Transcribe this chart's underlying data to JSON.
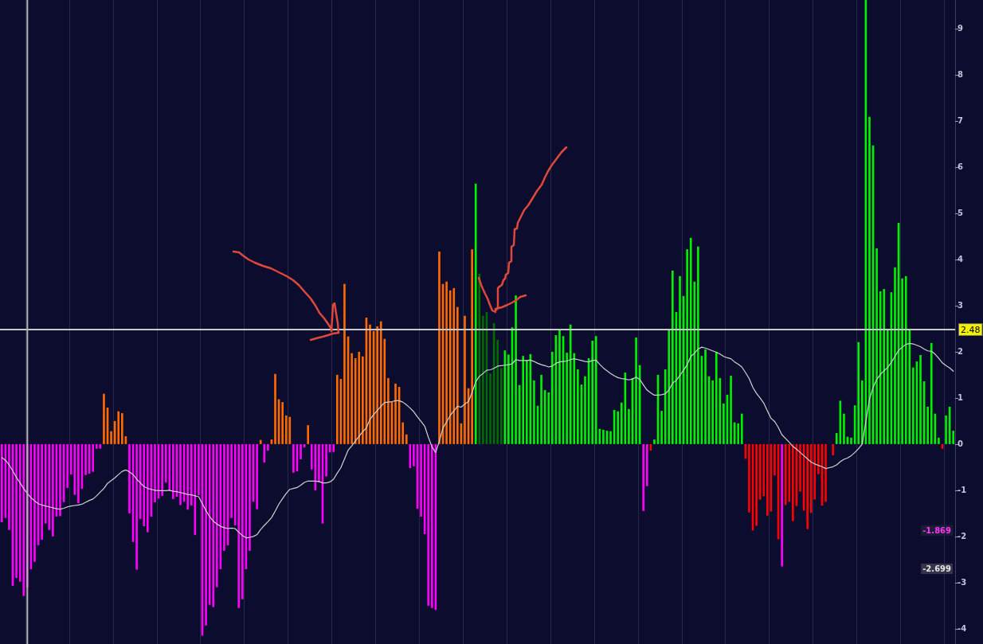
{
  "chart_data": {
    "type": "bar",
    "categories": [
      null,
      null,
      null,
      null,
      null,
      null,
      null,
      null,
      null,
      null,
      null,
      null,
      null,
      null,
      null,
      null,
      null,
      null,
      null,
      null,
      null,
      null,
      null,
      null,
      null,
      null,
      null,
      null,
      null,
      null,
      null,
      null,
      null,
      null,
      null,
      null,
      null,
      null,
      null,
      null,
      null,
      null,
      null,
      null,
      null,
      null,
      null,
      null,
      null,
      null,
      null,
      null,
      null,
      null,
      null,
      null,
      null,
      null,
      null,
      null,
      null,
      null,
      null,
      null,
      null,
      null,
      null,
      null,
      null,
      null,
      null,
      null,
      null,
      null,
      null,
      null,
      null,
      null,
      null,
      null,
      null,
      null,
      null,
      null,
      null,
      null,
      null,
      null,
      null,
      null,
      null,
      null,
      null,
      null,
      null,
      null,
      null,
      null,
      null,
      null,
      null,
      null,
      null,
      null,
      null,
      null,
      null,
      null,
      null,
      null,
      null,
      null,
      null,
      null,
      null,
      null,
      null,
      null,
      null,
      null,
      null,
      null,
      null,
      null,
      null,
      null,
      null,
      null,
      null,
      null,
      null,
      null,
      null,
      null,
      null,
      null,
      null,
      null,
      null,
      null,
      null,
      null,
      null,
      null,
      null,
      null,
      null,
      null,
      null,
      null,
      null,
      null,
      null,
      null,
      null,
      null,
      null,
      null,
      null,
      null,
      null,
      null,
      null,
      null,
      null,
      null,
      null,
      null,
      null,
      null,
      null,
      null,
      null,
      null,
      null,
      null,
      null,
      null,
      null,
      null,
      null,
      null,
      null,
      null,
      null,
      null,
      null,
      null,
      null,
      null,
      null,
      null,
      null,
      null,
      null,
      null,
      null,
      null,
      null,
      null,
      null,
      null,
      null,
      null,
      null,
      null,
      null,
      null,
      null,
      null,
      null,
      null,
      null,
      null,
      null,
      null,
      null,
      null,
      null,
      null,
      null,
      null,
      null,
      null,
      null,
      null,
      null,
      null,
      null,
      null,
      null,
      null,
      null,
      null,
      null,
      null,
      null,
      null,
      null,
      null,
      null,
      null,
      null,
      null,
      null,
      null,
      null,
      null,
      null,
      null,
      null,
      null,
      null,
      null,
      null,
      null,
      null,
      null,
      null,
      null,
      null,
      null
    ],
    "series": [
      {
        "values": [
          -1.69,
          -1.6,
          -1.86,
          -3.07,
          -2.9,
          -2.98,
          -3.29,
          -3.1,
          -2.71,
          -2.55,
          -2.19,
          -2.07,
          -1.72,
          -1.86,
          -2.0,
          -1.57,
          -1.56,
          -1.26,
          -0.95,
          -0.66,
          -1.1,
          -1.28,
          -0.97,
          -0.67,
          -0.64,
          -0.6,
          -0.1,
          -0.1,
          1.09,
          0.79,
          0.28,
          0.5,
          0.71,
          0.67,
          0.17,
          -1.5,
          -2.12,
          -2.72,
          -1.62,
          -1.78,
          -1.91,
          -1.57,
          -1.26,
          -1.18,
          -1.12,
          -0.83,
          -1.0,
          -1.19,
          -1.14,
          -1.32,
          -1.25,
          -1.42,
          -1.33,
          -1.97,
          -1.11,
          -4.15,
          -3.93,
          -3.48,
          -3.53,
          -3.1,
          -2.71,
          -2.31,
          -2.19,
          -1.6,
          -1.76,
          -3.55,
          -3.36,
          -2.71,
          -2.31,
          -1.25,
          -1.41,
          0.09,
          -0.4,
          -0.14,
          0.1,
          1.52,
          0.97,
          0.91,
          0.62,
          0.59,
          -0.62,
          -0.59,
          -0.33,
          -0.07,
          0.41,
          -0.55,
          -1.0,
          -0.83,
          -1.72,
          -0.7,
          -0.18,
          -0.17,
          1.5,
          1.41,
          3.47,
          2.33,
          1.97,
          1.86,
          2.0,
          1.9,
          2.74,
          2.59,
          2.45,
          2.55,
          2.66,
          2.28,
          1.43,
          0.91,
          1.31,
          1.24,
          0.47,
          0.21,
          -0.52,
          -0.48,
          -1.4,
          -1.57,
          -1.95,
          -3.5,
          -3.55,
          -3.59,
          4.17,
          3.47,
          3.52,
          3.33,
          3.38,
          2.97,
          0.45,
          2.78,
          1.21,
          4.22,
          5.64,
          3.69,
          2.78,
          2.86,
          1.53,
          2.62,
          2.26,
          1.65,
          2.03,
          1.94,
          2.53,
          3.22,
          1.28,
          1.91,
          1.82,
          1.95,
          1.38,
          0.83,
          1.5,
          1.17,
          1.12,
          2.0,
          2.36,
          2.47,
          2.34,
          1.98,
          2.59,
          1.97,
          1.62,
          1.29,
          1.47,
          1.86,
          2.24,
          2.34,
          0.33,
          0.31,
          0.29,
          0.28,
          0.74,
          0.71,
          0.9,
          1.55,
          0.76,
          1.43,
          2.31,
          1.71,
          -1.45,
          -0.91,
          -0.14,
          0.1,
          1.5,
          0.72,
          1.62,
          2.48,
          3.76,
          2.86,
          3.64,
          3.21,
          4.22,
          4.47,
          3.52,
          4.28,
          1.91,
          2.05,
          1.47,
          1.38,
          2.0,
          1.43,
          0.88,
          1.07,
          1.48,
          0.47,
          0.45,
          0.66,
          -0.32,
          -1.48,
          -1.87,
          -1.77,
          -1.2,
          -1.13,
          -1.55,
          -1.46,
          -0.68,
          -2.06,
          -2.65,
          -1.32,
          -1.25,
          -1.67,
          -1.34,
          -1.03,
          -1.44,
          -1.84,
          -1.49,
          -1.2,
          -0.65,
          -1.33,
          -1.25,
          null,
          -0.24,
          0.24,
          0.94,
          0.66,
          0.16,
          0.14,
          0.84,
          2.21,
          1.38,
          9.62,
          7.09,
          6.47,
          4.24,
          3.31,
          3.36,
          2.48,
          3.29,
          3.83,
          4.79,
          3.59,
          3.64,
          2.48,
          1.66,
          1.79,
          1.93,
          1.36,
          0.81,
          2.19,
          0.66,
          0.14,
          -0.1,
          0.62,
          0.81,
          0.29
        ],
        "colors": [
          "#ff00ff",
          "#ff00ff",
          "#ff00ff",
          "#ff00ff",
          "#ff00ff",
          "#ff00ff",
          "#ff00ff",
          "#ff00ff",
          "#ff00ff",
          "#ff00ff",
          "#ff00ff",
          "#ff00ff",
          "#ff00ff",
          "#ff00ff",
          "#ff00ff",
          "#ff00ff",
          "#ff00ff",
          "#ff00ff",
          "#ff00ff",
          "#ff00ff",
          "#ff00ff",
          "#ff00ff",
          "#ff00ff",
          "#ff00ff",
          "#ff00ff",
          "#ff00ff",
          "#ff00ff",
          "#ff00ff",
          "#ff6a00",
          "#ff6a00",
          "#ff6a00",
          "#ff6a00",
          "#ff6a00",
          "#ff6a00",
          "#ff6a00",
          "#ff00ff",
          "#ff00ff",
          "#ff00ff",
          "#ff00ff",
          "#ff00ff",
          "#ff00ff",
          "#ff00ff",
          "#ff00ff",
          "#ff00ff",
          "#ff00ff",
          "#ff00ff",
          "#ff00ff",
          "#ff00ff",
          "#ff00ff",
          "#ff00ff",
          "#ff00ff",
          "#ff00ff",
          "#ff00ff",
          "#ff00ff",
          "#ff00ff",
          "#ff00ff",
          "#ff00ff",
          "#ff00ff",
          "#ff00ff",
          "#ff00ff",
          "#ff00ff",
          "#ff00ff",
          "#ff00ff",
          "#ff00ff",
          "#ff00ff",
          "#ff00ff",
          "#ff00ff",
          "#ff00ff",
          "#ff00ff",
          "#ff00ff",
          "#ff00ff",
          "#ff6a00",
          "#ff00ff",
          "#ff00ff",
          "#ff6a00",
          "#ff6a00",
          "#ff6a00",
          "#ff6a00",
          "#ff6a00",
          "#ff6a00",
          "#ff00ff",
          "#ff00ff",
          "#ff00ff",
          "#ff00ff",
          "#ff6a00",
          "#ff00ff",
          "#ff00ff",
          "#ff00ff",
          "#ff00ff",
          "#ff00ff",
          "#ff00ff",
          "#ff00ff",
          "#ff6a00",
          "#ff6a00",
          "#ff6a00",
          "#ff6a00",
          "#ff6a00",
          "#ff6a00",
          "#ff6a00",
          "#ff6a00",
          "#ff6a00",
          "#ff6a00",
          "#ff6a00",
          "#ff6a00",
          "#ff6a00",
          "#ff6a00",
          "#ff6a00",
          "#ff6a00",
          "#ff6a00",
          "#ff6a00",
          "#ff6a00",
          "#ff6a00",
          "#ff00ff",
          "#ff00ff",
          "#ff00ff",
          "#ff00ff",
          "#ff00ff",
          "#ff00ff",
          "#ff00ff",
          "#ff00ff",
          "#ff6a00",
          "#ff6a00",
          "#ff6a00",
          "#ff6a00",
          "#ff6a00",
          "#ff6a00",
          "#ff6a00",
          "#ff6a00",
          "#ff6a00",
          "#ff6a00",
          "#00f000",
          "#006b00",
          "#006b00",
          "#006b00",
          "#006b00",
          "#006b00",
          "#006b00",
          "#006b00",
          "#00f000",
          "#00f000",
          "#00f000",
          "#00f000",
          "#00f000",
          "#00f000",
          "#00f000",
          "#00f000",
          "#00f000",
          "#00f000",
          "#00f000",
          "#00f000",
          "#00f000",
          "#00f000",
          "#00f000",
          "#00f000",
          "#00f000",
          "#00f000",
          "#00f000",
          "#00f000",
          "#00f000",
          "#00f000",
          "#00f000",
          "#00f000",
          "#00f000",
          "#00f000",
          "#00f000",
          "#00f000",
          "#00f000",
          "#00f000",
          "#00f000",
          "#00f000",
          "#00f000",
          "#00f000",
          "#00f000",
          "#00f000",
          "#00f000",
          "#00f000",
          "#ff00ff",
          "#ff00ff",
          "#ff0000",
          "#00f000",
          "#00f000",
          "#00f000",
          "#00f000",
          "#00f000",
          "#00f000",
          "#00f000",
          "#00f000",
          "#00f000",
          "#00f000",
          "#00f000",
          "#00f000",
          "#00f000",
          "#00f000",
          "#00f000",
          "#00f000",
          "#00f000",
          "#00f000",
          "#00f000",
          "#00f000",
          "#00f000",
          "#00f000",
          "#00f000",
          "#00f000",
          "#00f000",
          "#ff0000",
          "#ff0000",
          "#ff0000",
          "#ff0000",
          "#ff0000",
          "#ff0000",
          "#ff0000",
          "#ff0000",
          "#ff0000",
          "#ff0000",
          "#ff00ff",
          "#ff0000",
          "#ff0000",
          "#ff0000",
          "#ff0000",
          "#ff0000",
          "#ff0000",
          "#ff0000",
          "#ff0000",
          "#ff0000",
          "#ff0000",
          "#ff0000",
          "#ff0000",
          null,
          "#ff0000",
          "#00f000",
          "#00f000",
          "#00f000",
          "#00f000",
          "#00f000",
          "#00f000",
          "#00f000",
          "#00f000",
          "#00f000",
          "#00f000",
          "#00f000",
          "#00f000",
          "#00f000",
          "#00f000",
          "#00f000",
          "#00f000",
          "#00f000",
          "#00f000",
          "#00f000",
          "#00f000",
          "#00f000",
          "#00f000",
          "#00f000",
          "#00f000",
          "#00f000",
          "#00f000",
          "#00f000",
          "#00f000",
          "#00f000",
          "#ff0000",
          "#00f000",
          "#00f000",
          "#00f000"
        ]
      },
      {
        "type": "line",
        "color": "#d2d2d2",
        "values": [
          -0.29,
          -0.35,
          -0.45,
          -0.58,
          -0.72,
          -0.84,
          -0.96,
          -1.07,
          -1.16,
          -1.23,
          -1.29,
          -1.32,
          -1.34,
          -1.36,
          -1.38,
          -1.4,
          -1.41,
          -1.39,
          -1.36,
          -1.34,
          -1.33,
          -1.32,
          -1.3,
          -1.26,
          -1.22,
          -1.19,
          -1.12,
          -1.04,
          -0.96,
          -0.85,
          -0.79,
          -0.73,
          -0.66,
          -0.59,
          -0.56,
          -0.6,
          -0.66,
          -0.76,
          -0.84,
          -0.92,
          -0.96,
          -0.98,
          -1.0,
          -1.01,
          -1.01,
          -1.01,
          -1.0,
          -1.02,
          -1.03,
          -1.05,
          -1.07,
          -1.09,
          -1.1,
          -1.12,
          -1.14,
          -1.29,
          -1.44,
          -1.57,
          -1.67,
          -1.73,
          -1.78,
          -1.81,
          -1.83,
          -1.82,
          -1.83,
          -1.91,
          -1.98,
          -2.03,
          -2.02,
          -2.0,
          -1.96,
          -1.85,
          -1.76,
          -1.68,
          -1.59,
          -1.45,
          -1.3,
          -1.18,
          -1.07,
          -0.98,
          -0.96,
          -0.94,
          -0.89,
          -0.83,
          -0.8,
          -0.8,
          -0.8,
          -0.81,
          -0.84,
          -0.84,
          -0.82,
          -0.76,
          -0.63,
          -0.51,
          -0.32,
          -0.13,
          -0.04,
          0.07,
          0.17,
          0.27,
          0.35,
          0.54,
          0.64,
          0.73,
          0.82,
          0.9,
          0.91,
          0.92,
          0.94,
          0.94,
          0.91,
          0.85,
          0.78,
          0.7,
          0.59,
          0.49,
          0.39,
          0.15,
          -0.06,
          -0.18,
          0.06,
          0.35,
          0.48,
          0.62,
          0.72,
          0.82,
          0.8,
          0.87,
          0.92,
          1.12,
          1.35,
          1.47,
          1.53,
          1.6,
          1.61,
          1.64,
          1.69,
          1.7,
          1.71,
          1.72,
          1.74,
          1.83,
          1.81,
          1.81,
          1.81,
          1.82,
          1.79,
          1.75,
          1.72,
          1.7,
          1.67,
          1.69,
          1.75,
          1.78,
          1.79,
          1.8,
          1.83,
          1.85,
          1.83,
          1.81,
          1.79,
          1.78,
          1.81,
          1.82,
          1.73,
          1.65,
          1.59,
          1.53,
          1.48,
          1.44,
          1.42,
          1.41,
          1.39,
          1.41,
          1.45,
          1.4,
          1.28,
          1.17,
          1.11,
          1.06,
          1.06,
          1.07,
          1.09,
          1.17,
          1.32,
          1.38,
          1.49,
          1.6,
          1.72,
          1.9,
          1.97,
          2.06,
          2.1,
          2.08,
          2.05,
          2.02,
          1.99,
          1.95,
          1.9,
          1.87,
          1.85,
          1.78,
          1.73,
          1.67,
          1.55,
          1.42,
          1.23,
          1.1,
          1.0,
          0.89,
          0.72,
          0.56,
          0.49,
          0.36,
          0.2,
          0.12,
          0.04,
          -0.05,
          -0.11,
          -0.18,
          -0.25,
          -0.32,
          -0.39,
          -0.43,
          -0.46,
          -0.49,
          -0.53,
          -0.51,
          -0.49,
          -0.45,
          -0.38,
          -0.33,
          -0.3,
          -0.25,
          -0.18,
          -0.1,
          0.0,
          0.48,
          0.97,
          1.23,
          1.4,
          1.51,
          1.59,
          1.66,
          1.77,
          1.9,
          2.03,
          2.1,
          2.16,
          2.18,
          2.17,
          2.14,
          2.11,
          2.06,
          2.02,
          2.01,
          1.95,
          1.86,
          1.76,
          1.7,
          1.65,
          1.58
        ]
      }
    ],
    "ylim": [
      -4.33,
      9.62
    ],
    "yticks": [
      -4,
      -3,
      -2,
      -1,
      0,
      1,
      2,
      3,
      4,
      5,
      6,
      7,
      8,
      9
    ],
    "tick_labels": "y",
    "grid": "x",
    "marker": "none",
    "ref_lines": [
      {
        "axis": "y",
        "value": 2.48,
        "label": "2.48",
        "color": "#c8c8c8"
      }
    ],
    "annotations": [
      {
        "text": "-1.869",
        "y": -1.869
      },
      {
        "text": "-2.699",
        "y": -2.699
      }
    ]
  }
}
